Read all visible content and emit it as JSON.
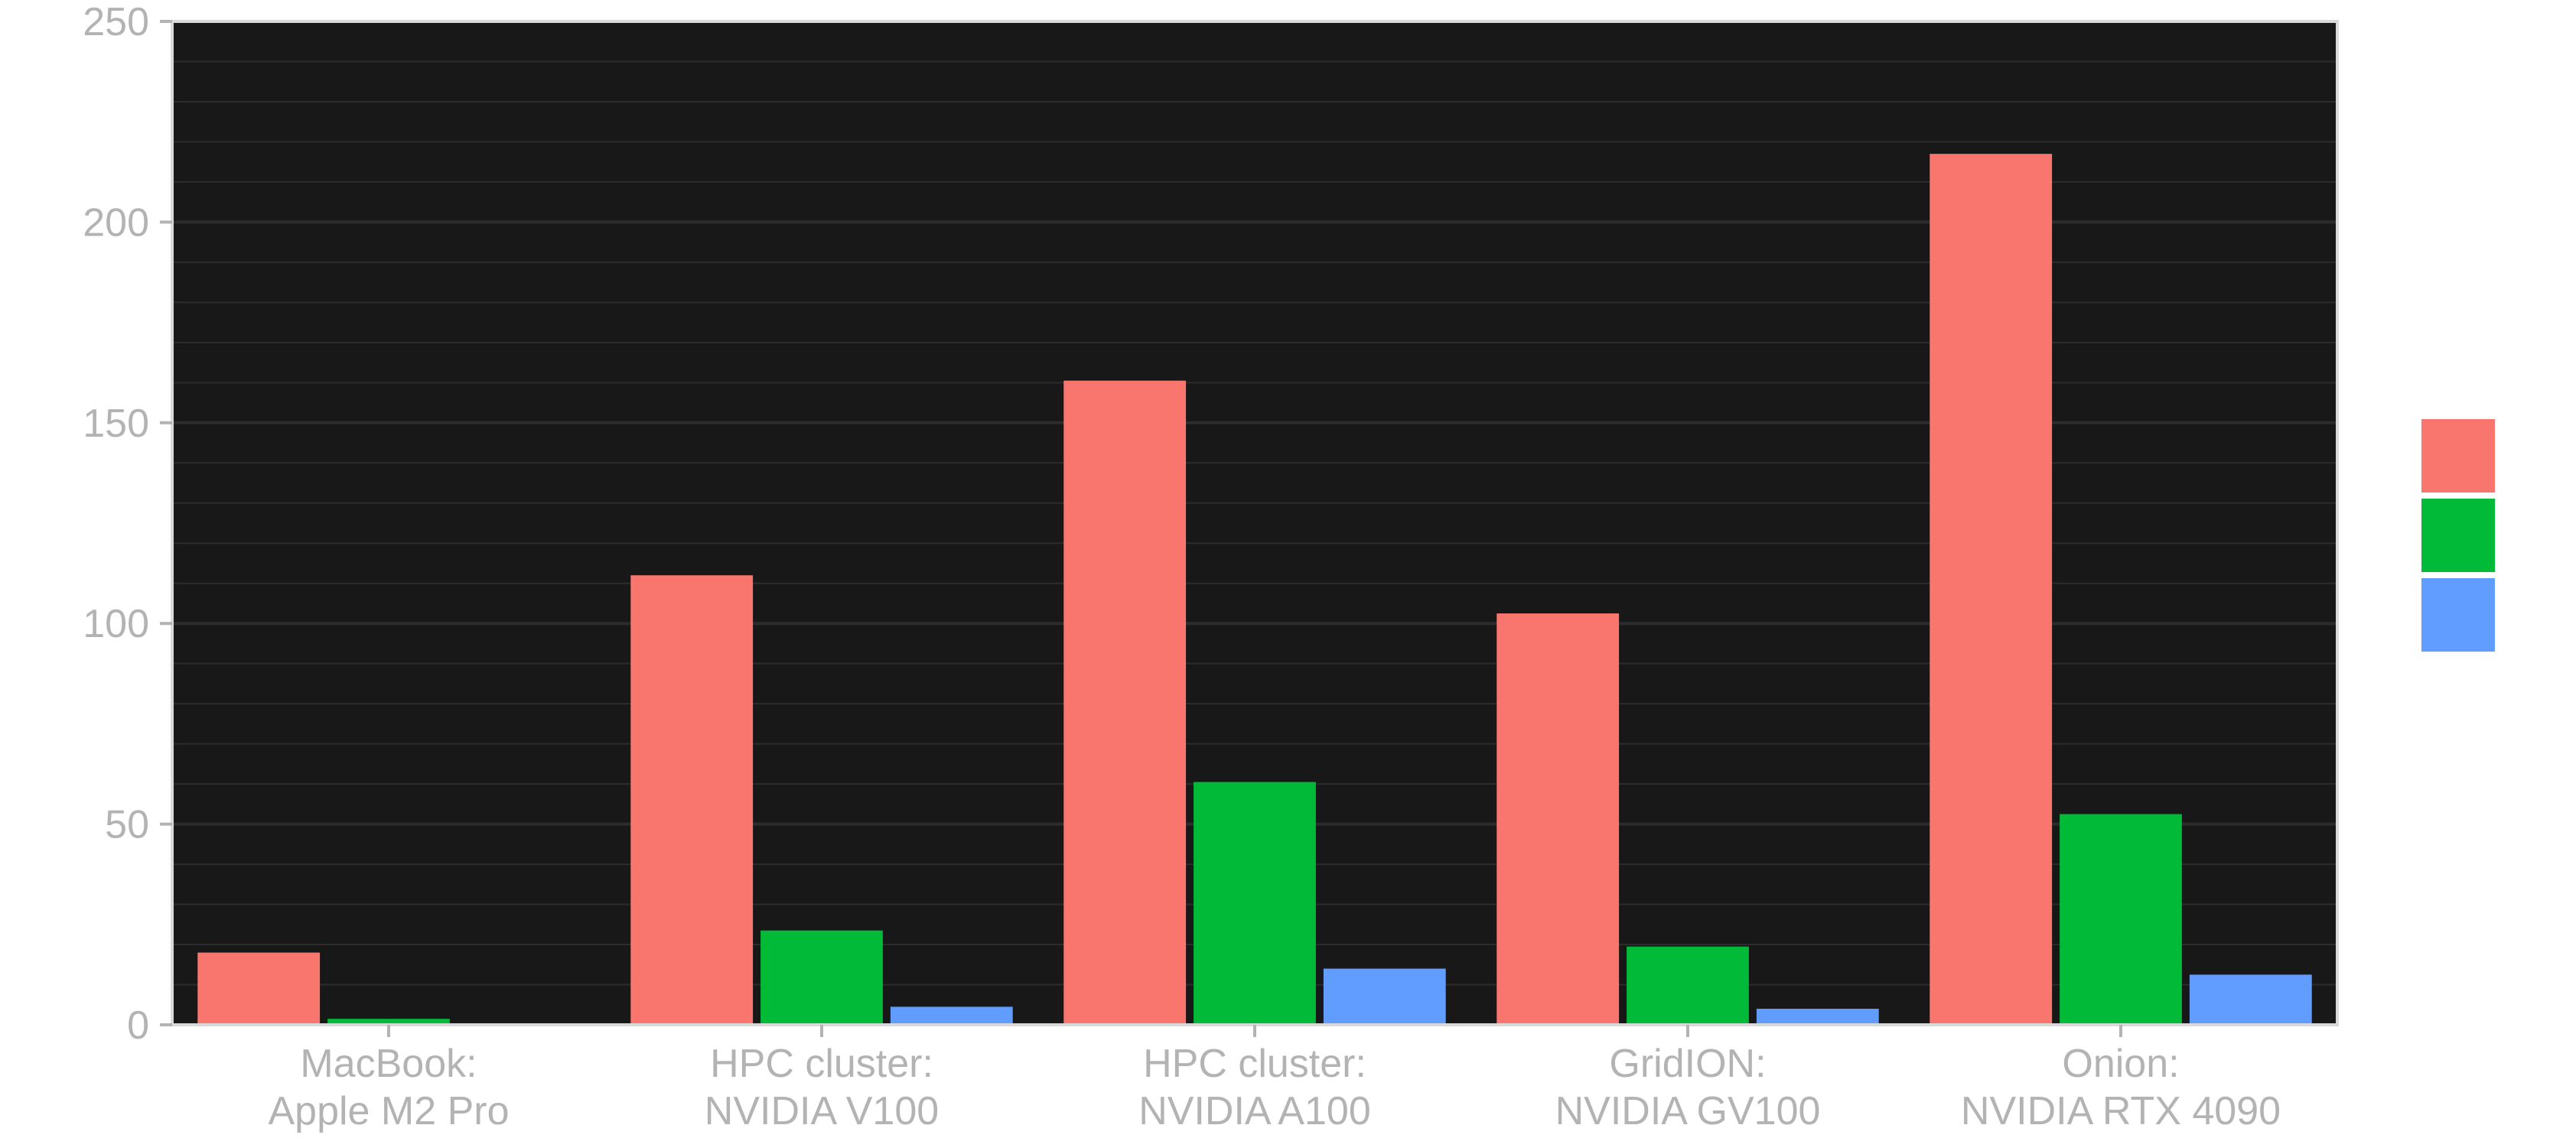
{
  "chart_data": {
    "type": "bar",
    "title": "",
    "xlabel": "",
    "ylabel": "",
    "ylim": [
      0,
      250
    ],
    "yticks": [
      0,
      50,
      100,
      150,
      200,
      250
    ],
    "grid": true,
    "legend_position": "right",
    "categories": [
      [
        "MacBook:",
        "Apple M2 Pro"
      ],
      [
        "HPC cluster:",
        "NVIDIA V100"
      ],
      [
        "HPC cluster:",
        "NVIDIA A100"
      ],
      [
        "GridION:",
        "NVIDIA GV100"
      ],
      [
        "Onion:",
        "NVIDIA RTX 4090"
      ]
    ],
    "series": [
      {
        "color": "#f8766d",
        "values": [
          18,
          112,
          160.5,
          102.5,
          217
        ]
      },
      {
        "color": "#00ba38",
        "values": [
          1.5,
          23.5,
          60.5,
          19.5,
          52.5
        ]
      },
      {
        "color": "#619cff",
        "values": [
          0,
          4.5,
          14,
          4,
          12.5
        ]
      }
    ],
    "panel_background": "#181818",
    "gridline_color": "#2c2c2c",
    "text_color": "#b3b3b3"
  }
}
